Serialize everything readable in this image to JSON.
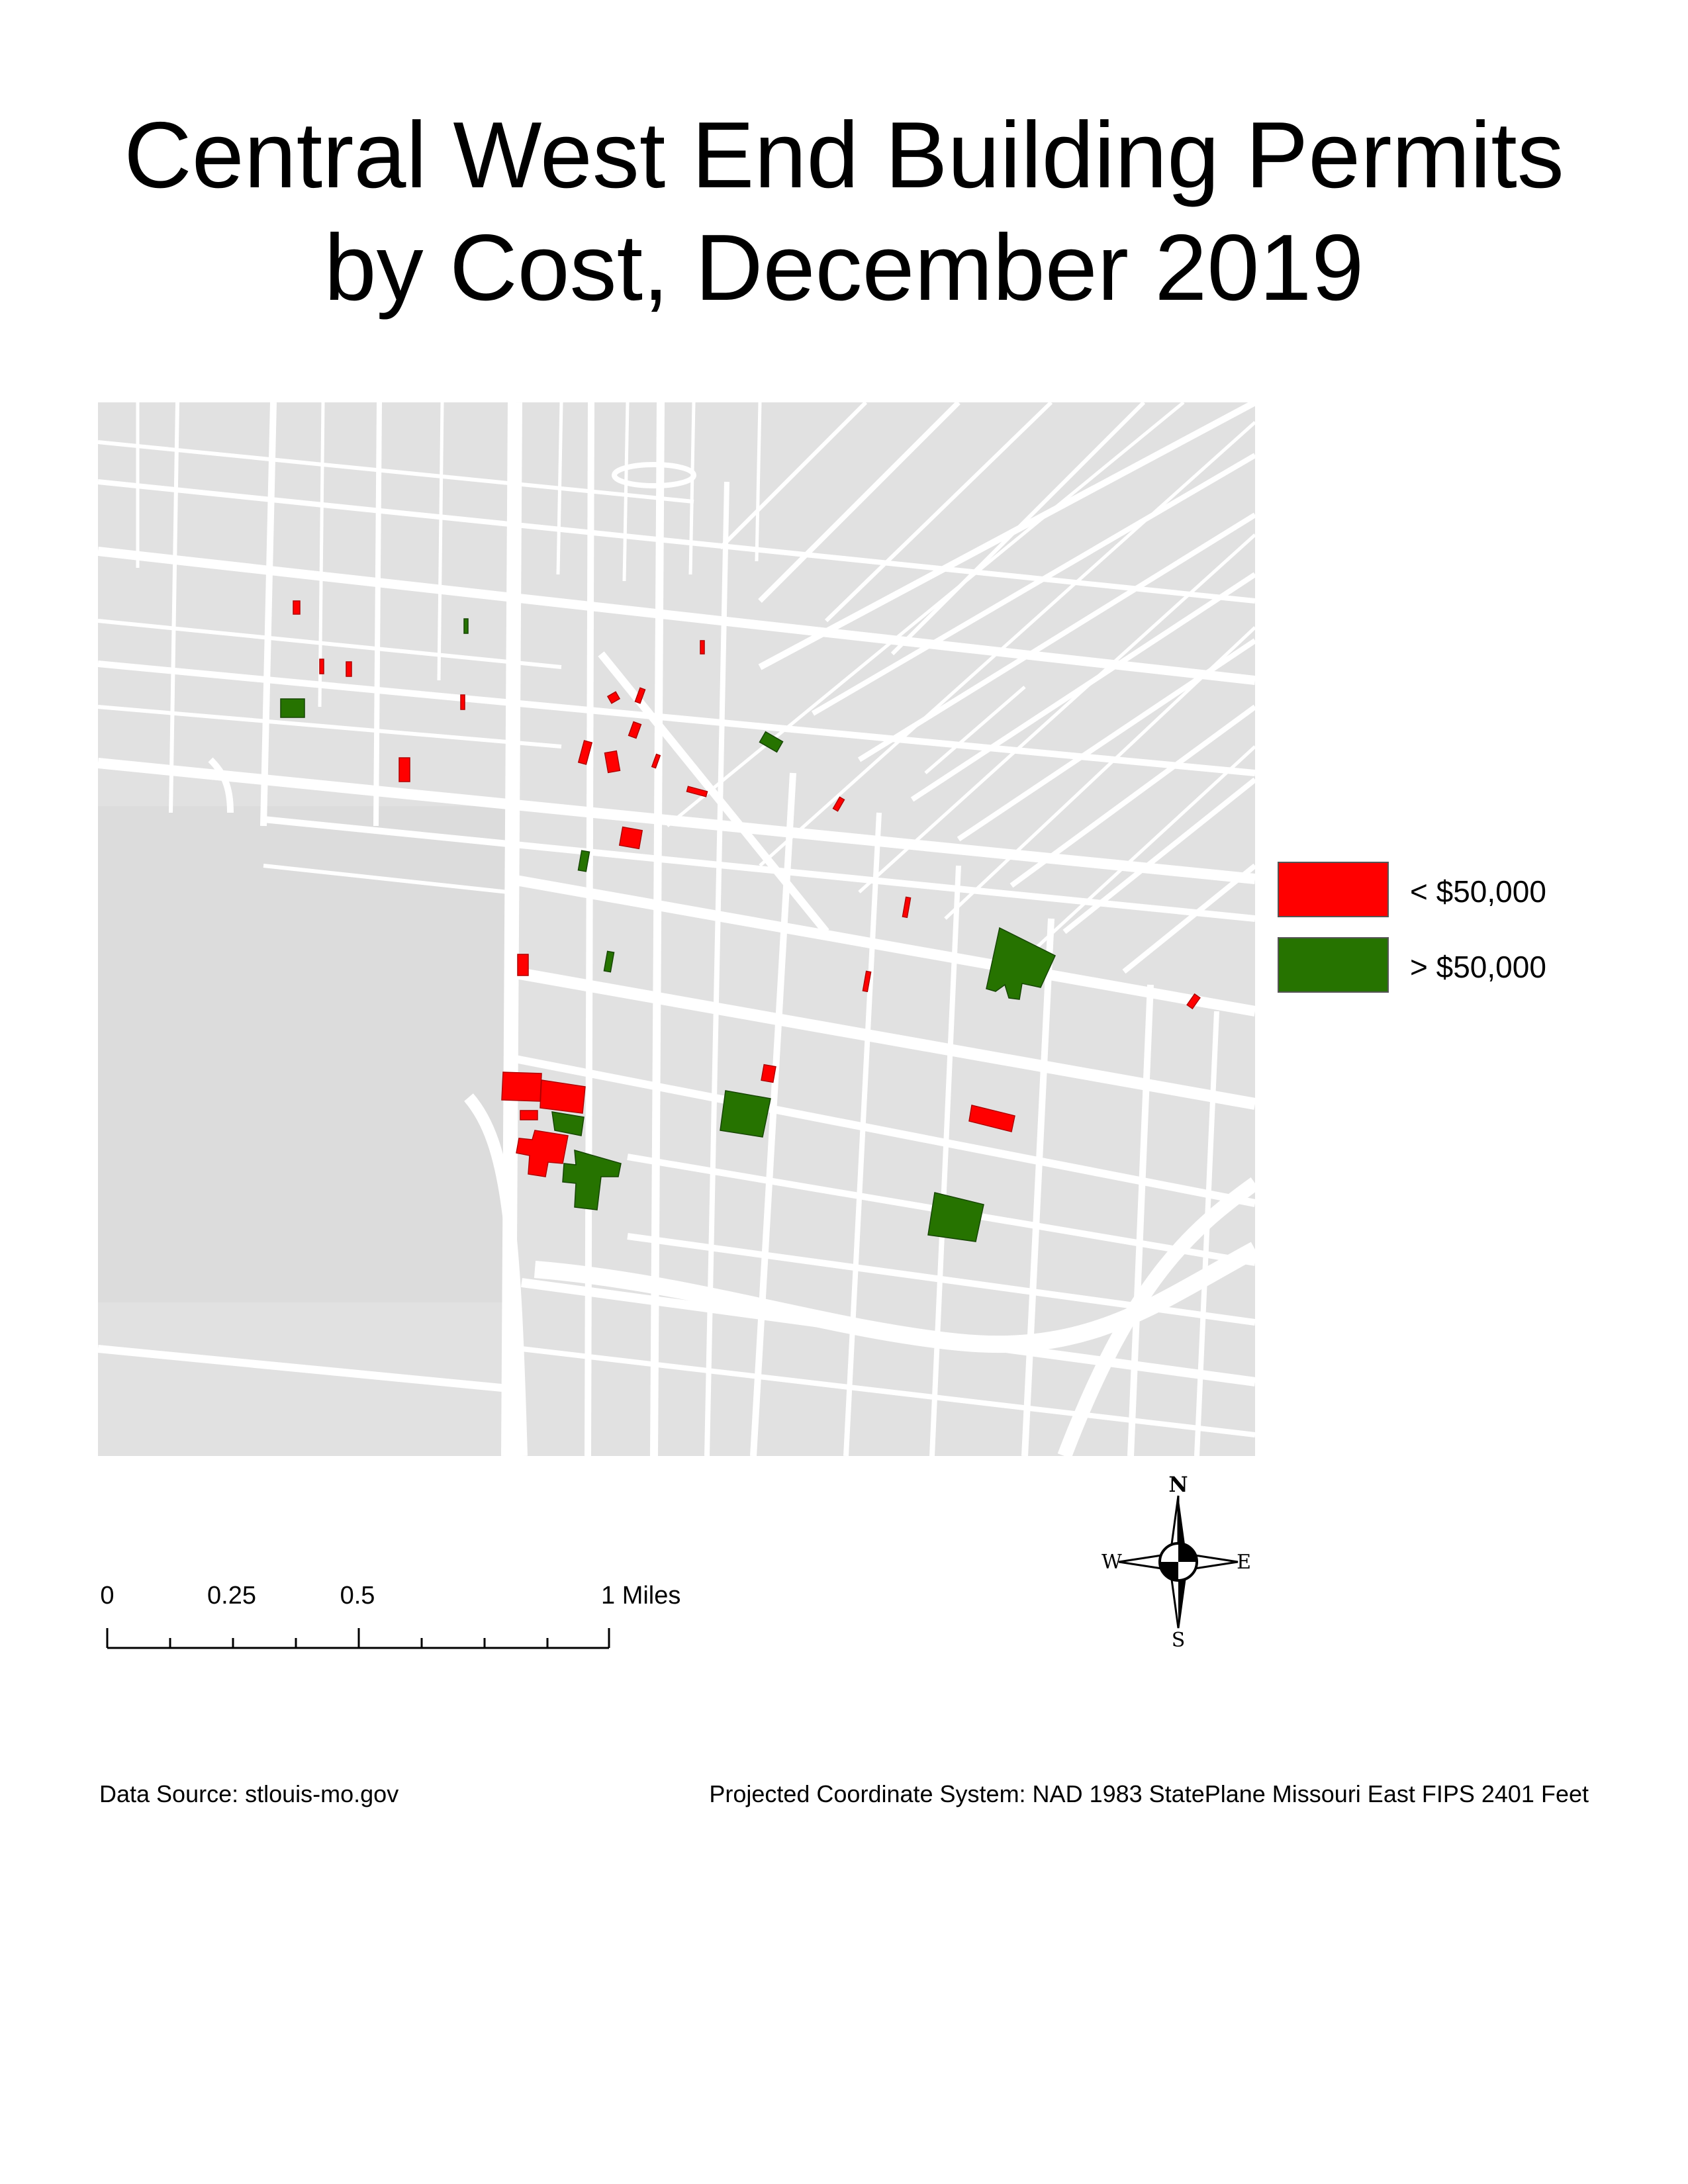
{
  "title": {
    "line1": "Central West End Building Permits",
    "line2": "by Cost, December 2019"
  },
  "legend": {
    "items": [
      {
        "label": "< $50,000",
        "color": "#ff0000"
      },
      {
        "label": "> $50,000",
        "color": "#267300"
      }
    ]
  },
  "scale_bar": {
    "labels": [
      "0",
      "0.25",
      "0.5",
      "1 Miles"
    ]
  },
  "north_arrow": {
    "n": "N",
    "s": "S",
    "e": "E",
    "w": "W"
  },
  "footer": {
    "data_source": "Data Source: stlouis-mo.gov",
    "projection": "Projected Coordinate System: NAD 1983 StatePlane Missouri East FIPS 2401 Feet"
  },
  "map": {
    "background_color": "#e1e1e1",
    "street_color": "#ffffff",
    "low_cost_color": "#ff0000",
    "high_cost_color": "#267300"
  }
}
